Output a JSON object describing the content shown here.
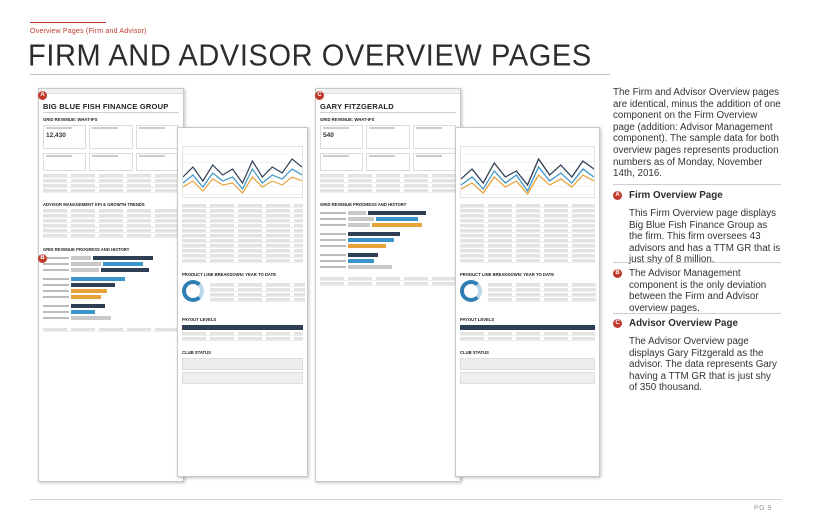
{
  "header": {
    "section_label": "Overview Pages (Firm and Advisor)",
    "title": "FIRM AND ADVISOR OVERVIEW PAGES"
  },
  "colors": {
    "accent": "#c0392b",
    "navy": "#2e3f55",
    "blue": "#3b95c8",
    "orange": "#e8a23a"
  },
  "screens": {
    "firm": {
      "badge": "A",
      "title": "BIG BLUE FISH FINANCE GROUP",
      "kpi_value": "12,430",
      "section_revenue": "GRID REVENUE: WHAT-IFS",
      "section_mgmt": "ADVISOR MANAGEMENT KPI & GROWTH TRENDS",
      "section_progress": "GRID REVENUE PROGRESS AND HISTORY"
    },
    "mgmt": {
      "badge": "B"
    },
    "advisor": {
      "badge": "C",
      "title": "GARY FITZGERALD",
      "kpi_value": "540",
      "section_revenue": "GRID REVENUE: WHAT-IFS",
      "section_progress": "GRID REVENUE PROGRESS AND HISTORY"
    },
    "detail": {
      "section_product": "PRODUCT LINE BREAKDOWN: YEAR TO DATE",
      "section_payout": "PAYOUT LEVELS",
      "section_club": "CLUB STATUS"
    }
  },
  "description": "The Firm and Advisor Overview pages are identical, minus the addition of one component on the Firm Overview page (addition: Advisor Management component). The sample data for both overview pages represents production numbers as of Monday, November 14th, 2016.",
  "sections": [
    {
      "badge": "A",
      "heading": "Firm Overview Page",
      "body": "This Firm Overview page displays Big Blue Fish Finance Group as the firm. This firm oversees 43 advisors and has a TTM GR that is just shy of 8 million."
    },
    {
      "badge": "B",
      "heading": "",
      "body": "The Advisor Management component is the only deviation between the Firm and Advisor overview pages."
    },
    {
      "badge": "C",
      "heading": "Advisor Overview Page",
      "body": "The Advisor Overview page displays Gary Fitzgerald as the advisor. The data represents Gary having a TTM GR that is just shy of 350 thousand."
    }
  ],
  "footer": {
    "page": "PG 9"
  }
}
